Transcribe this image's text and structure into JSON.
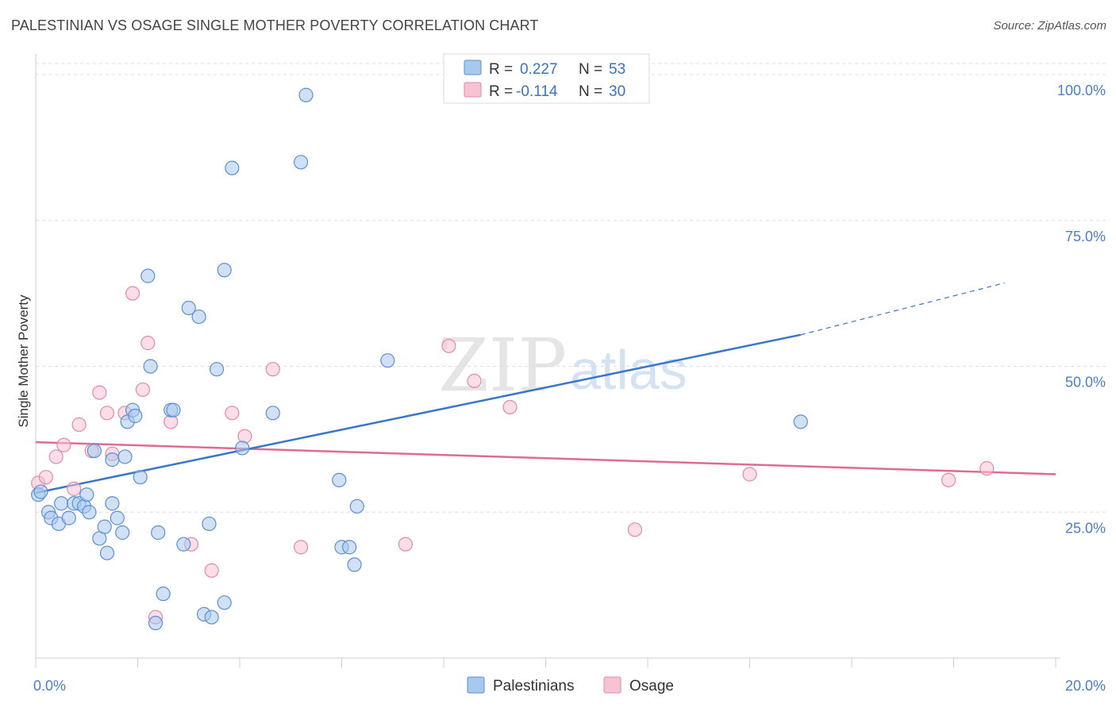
{
  "title": "PALESTINIAN VS OSAGE SINGLE MOTHER POVERTY CORRELATION CHART",
  "source": "Source: ZipAtlas.com",
  "watermark": {
    "zip": "ZIP",
    "atlas": "atlas"
  },
  "colors": {
    "palestinians_fill": "#a9c8ee",
    "palestinians_stroke": "#5b8fd4",
    "palestinians_line": "#3a76c8",
    "osage_fill": "#f7c3d3",
    "osage_stroke": "#e38aa6",
    "osage_line": "#e06a92",
    "tick_label": "#4a7fc7",
    "grid": "#dcdcdc"
  },
  "legend": {
    "rows": [
      {
        "r_label": "R =",
        "r_value": "0.227",
        "n_label": "N =",
        "n_value": "53"
      },
      {
        "r_label": "R =",
        "r_value": "-0.114",
        "n_label": "N =",
        "n_value": "30"
      }
    ]
  },
  "chart_data": {
    "type": "scatter",
    "title": "PALESTINIAN VS OSAGE SINGLE MOTHER POVERTY CORRELATION CHART",
    "xlabel": "",
    "ylabel": "Single Mother Poverty",
    "xlim": [
      0,
      20
    ],
    "ylim": [
      0,
      103
    ],
    "x_tick_labels": [
      "0.0%",
      "20.0%"
    ],
    "y_ticks": [
      25,
      50,
      75,
      100
    ],
    "y_tick_labels": [
      "25.0%",
      "50.0%",
      "75.0%",
      "100.0%"
    ],
    "grid": "horizontal dashed",
    "legend_position": "top-center",
    "series": [
      {
        "name": "Palestinians",
        "r": 0.227,
        "n": 53,
        "trend": {
          "x0": 0,
          "y0": 28.3,
          "x1": 15.0,
          "y1": 55.4,
          "x_dash_end": 19.0,
          "y_dash_end": 64.3
        },
        "points": [
          [
            0.05,
            28.0
          ],
          [
            0.25,
            25.0
          ],
          [
            0.3,
            24.0
          ],
          [
            0.45,
            23.0
          ],
          [
            0.5,
            26.5
          ],
          [
            0.65,
            24.0
          ],
          [
            0.75,
            26.5
          ],
          [
            0.85,
            26.5
          ],
          [
            0.95,
            26.0
          ],
          [
            1.0,
            28.0
          ],
          [
            1.05,
            25.0
          ],
          [
            1.15,
            35.5
          ],
          [
            1.25,
            20.5
          ],
          [
            1.35,
            22.5
          ],
          [
            1.4,
            18.0
          ],
          [
            1.5,
            34.0
          ],
          [
            1.6,
            24.0
          ],
          [
            1.7,
            21.5
          ],
          [
            1.75,
            34.5
          ],
          [
            1.8,
            40.5
          ],
          [
            1.9,
            42.5
          ],
          [
            1.95,
            41.5
          ],
          [
            2.05,
            31.0
          ],
          [
            2.2,
            65.5
          ],
          [
            2.25,
            50.0
          ],
          [
            2.4,
            21.5
          ],
          [
            2.5,
            11.0
          ],
          [
            2.35,
            6.0
          ],
          [
            2.65,
            42.5
          ],
          [
            2.7,
            42.5
          ],
          [
            2.9,
            19.5
          ],
          [
            3.0,
            60.0
          ],
          [
            3.2,
            58.5
          ],
          [
            3.3,
            7.5
          ],
          [
            3.45,
            7.0
          ],
          [
            3.4,
            23.0
          ],
          [
            3.55,
            49.5
          ],
          [
            3.7,
            9.5
          ],
          [
            3.7,
            66.5
          ],
          [
            3.85,
            84.0
          ],
          [
            4.05,
            36.0
          ],
          [
            4.65,
            42.0
          ],
          [
            5.2,
            85.0
          ],
          [
            5.3,
            96.5
          ],
          [
            5.95,
            30.5
          ],
          [
            6.0,
            19.0
          ],
          [
            6.15,
            19.0
          ],
          [
            6.25,
            16.0
          ],
          [
            6.3,
            26.0
          ],
          [
            6.9,
            51.0
          ],
          [
            15.0,
            40.5
          ],
          [
            0.1,
            28.5
          ],
          [
            1.5,
            26.5
          ]
        ]
      },
      {
        "name": "Osage",
        "r": -0.114,
        "n": 30,
        "trend": {
          "x0": 0,
          "y0": 37.0,
          "x1": 20.0,
          "y1": 31.5
        },
        "points": [
          [
            0.05,
            30.0
          ],
          [
            0.2,
            31.0
          ],
          [
            0.4,
            34.5
          ],
          [
            0.55,
            36.5
          ],
          [
            0.75,
            29.0
          ],
          [
            0.85,
            40.0
          ],
          [
            1.1,
            35.5
          ],
          [
            1.25,
            45.5
          ],
          [
            1.4,
            42.0
          ],
          [
            1.5,
            35.0
          ],
          [
            1.75,
            42.0
          ],
          [
            1.9,
            62.5
          ],
          [
            2.1,
            46.0
          ],
          [
            2.2,
            54.0
          ],
          [
            2.35,
            7.0
          ],
          [
            2.65,
            40.5
          ],
          [
            3.05,
            19.5
          ],
          [
            3.45,
            15.0
          ],
          [
            3.85,
            42.0
          ],
          [
            4.1,
            38.0
          ],
          [
            4.65,
            49.5
          ],
          [
            5.2,
            19.0
          ],
          [
            7.25,
            19.5
          ],
          [
            8.1,
            53.5
          ],
          [
            8.6,
            47.5
          ],
          [
            9.3,
            43.0
          ],
          [
            11.75,
            22.0
          ],
          [
            14.0,
            31.5
          ],
          [
            17.9,
            30.5
          ],
          [
            18.65,
            32.5
          ]
        ]
      }
    ]
  }
}
